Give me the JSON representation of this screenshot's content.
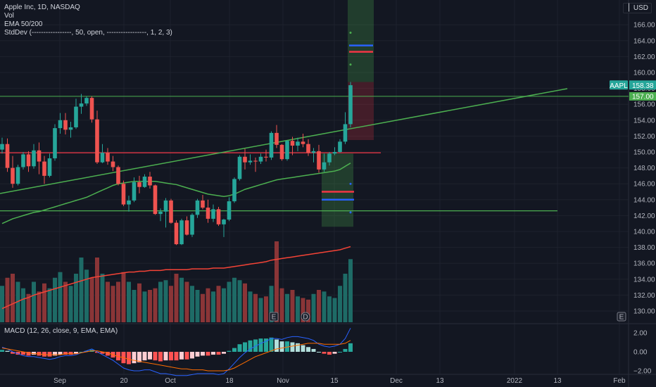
{
  "legend": {
    "symbol": "Apple Inc, 1D, NASDAQ",
    "vol": "Vol",
    "ema": "EMA 50/200",
    "stddev": "StdDev (-----------------, 50, open, -----------------, 1, 2, 3)"
  },
  "macd_legend": "MACD (12, 26, close, 9, EMA, EMA)",
  "currency": "USD",
  "price_tag": {
    "label": "AAPL",
    "value": "158.38"
  },
  "line_tag": {
    "value": "157.00"
  },
  "event_markers": [
    "E",
    "D",
    "E"
  ],
  "colors": {
    "background": "#131722",
    "up": "#26a69a",
    "down": "#ef5350",
    "vol_up": "#1e6b66",
    "vol_down": "#8a3537",
    "ema50": "#4caf50",
    "ema200": "#f44336",
    "hline_green": "#4caf50",
    "hline_red": "#f23645",
    "macd": "#2962ff",
    "signal": "#ff6d00"
  },
  "chart_data": [
    {
      "type": "candlestick",
      "title": "Apple Inc, 1D, NASDAQ",
      "y_ticks": [
        130,
        132,
        134,
        136,
        138,
        140,
        142,
        144,
        146,
        148,
        150,
        152,
        154,
        156,
        158,
        160,
        162,
        164,
        166
      ],
      "x_ticks": [
        "Sep",
        "20",
        "Oct",
        "18",
        "Nov",
        "15",
        "Dec",
        "13",
        "2022",
        "13",
        "Feb"
      ],
      "ohlc": [
        [
          150.3,
          151.8,
          149.8,
          151.0
        ],
        [
          151.0,
          151.7,
          147.5,
          148.0
        ],
        [
          148.0,
          149.5,
          145.5,
          146.0
        ],
        [
          146.0,
          148.4,
          145.8,
          148.1
        ],
        [
          148.1,
          150.0,
          147.8,
          149.7
        ],
        [
          149.7,
          150.1,
          147.5,
          148.2
        ],
        [
          148.2,
          151.0,
          147.9,
          150.2
        ],
        [
          150.2,
          151.2,
          147.2,
          148.8
        ],
        [
          148.8,
          149.5,
          146.0,
          147.0
        ],
        [
          147.0,
          149.8,
          146.8,
          149.2
        ],
        [
          149.2,
          153.5,
          148.9,
          153.0
        ],
        [
          153.0,
          154.9,
          152.3,
          154.0
        ],
        [
          154.0,
          154.9,
          152.2,
          152.8
        ],
        [
          152.8,
          153.8,
          151.8,
          153.1
        ],
        [
          153.1,
          156.7,
          152.9,
          155.7
        ],
        [
          155.7,
          157.3,
          154.8,
          156.1
        ],
        [
          156.1,
          157.0,
          155.8,
          156.8
        ],
        [
          156.8,
          157.0,
          153.7,
          154.1
        ],
        [
          154.1,
          155.2,
          148.5,
          148.7
        ],
        [
          148.7,
          151.0,
          148.6,
          149.9
        ],
        [
          149.9,
          150.5,
          148.4,
          148.8
        ],
        [
          148.8,
          149.5,
          147.6,
          148.1
        ],
        [
          148.1,
          148.3,
          145.8,
          146.0
        ],
        [
          146.0,
          146.4,
          143.2,
          143.4
        ],
        [
          143.4,
          144.5,
          142.5,
          143.9
        ],
        [
          143.9,
          146.8,
          143.7,
          146.2
        ],
        [
          146.2,
          147.0,
          144.8,
          145.6
        ],
        [
          145.6,
          147.2,
          145.5,
          146.9
        ],
        [
          146.9,
          147.5,
          145.4,
          145.8
        ],
        [
          145.8,
          145.9,
          142.1,
          142.2
        ],
        [
          142.2,
          142.9,
          141.3,
          142.5
        ],
        [
          142.5,
          144.2,
          140.5,
          143.9
        ],
        [
          143.9,
          144.1,
          141.0,
          141.1
        ],
        [
          141.1,
          141.4,
          138.3,
          138.4
        ],
        [
          138.4,
          141.6,
          138.3,
          141.4
        ],
        [
          141.4,
          141.9,
          139.5,
          139.6
        ],
        [
          139.6,
          142.3,
          139.3,
          142.1
        ],
        [
          142.1,
          144.1,
          141.7,
          143.9
        ],
        [
          143.9,
          144.6,
          142.8,
          143.0
        ],
        [
          143.0,
          144.0,
          141.1,
          141.6
        ],
        [
          141.6,
          143.4,
          141.2,
          142.8
        ],
        [
          142.8,
          143.1,
          140.7,
          140.9
        ],
        [
          140.9,
          141.6,
          139.3,
          141.5
        ],
        [
          141.5,
          144.3,
          141.3,
          143.8
        ],
        [
          143.8,
          146.8,
          143.6,
          146.6
        ],
        [
          146.6,
          149.6,
          146.4,
          149.4
        ],
        [
          149.4,
          150.4,
          147.8,
          148.7
        ],
        [
          148.7,
          149.7,
          148.4,
          148.9
        ],
        [
          148.9,
          149.3,
          147.5,
          148.8
        ],
        [
          148.8,
          149.8,
          148.5,
          149.4
        ],
        [
          149.4,
          150.3,
          148.8,
          149.3
        ],
        [
          149.3,
          152.6,
          149.0,
          152.4
        ],
        [
          152.4,
          153.4,
          150.5,
          150.9
        ],
        [
          150.9,
          151.0,
          148.9,
          149.1
        ],
        [
          149.1,
          151.5,
          148.9,
          151.4
        ],
        [
          151.4,
          151.9,
          149.6,
          150.8
        ],
        [
          150.8,
          151.8,
          150.1,
          151.3
        ],
        [
          151.3,
          152.3,
          150.6,
          151.0
        ],
        [
          151.0,
          151.6,
          149.5,
          149.9
        ],
        [
          149.9,
          150.5,
          148.7,
          150.1
        ],
        [
          150.1,
          150.9,
          147.4,
          147.8
        ],
        [
          147.8,
          149.8,
          147.5,
          148.7
        ],
        [
          148.7,
          150.0,
          148.3,
          149.8
        ],
        [
          149.8,
          150.6,
          149.6,
          150.0
        ],
        [
          150.0,
          151.6,
          149.9,
          151.3
        ],
        [
          151.3,
          155.0,
          151.0,
          153.5
        ],
        [
          153.5,
          158.8,
          153.1,
          158.4
        ]
      ],
      "ema50": [
        141.0,
        141.3,
        141.6,
        141.8,
        142.0,
        142.2,
        142.4,
        142.5,
        142.7,
        142.9,
        143.1,
        143.3,
        143.5,
        143.7,
        143.9,
        144.1,
        144.3,
        144.6,
        144.9,
        145.2,
        145.5,
        145.8,
        146.0,
        146.1,
        146.2,
        146.3,
        146.3,
        146.3,
        146.3,
        146.3,
        146.2,
        146.1,
        146.0,
        145.9,
        145.7,
        145.5,
        145.3,
        145.1,
        144.9,
        144.7,
        144.6,
        144.5,
        144.4,
        144.5,
        144.7,
        145.0,
        145.3,
        145.5,
        145.7,
        145.9,
        146.1,
        146.3,
        146.5,
        146.6,
        146.7,
        146.8,
        146.9,
        147.0,
        147.1,
        147.2,
        147.3,
        147.4,
        147.5,
        147.6,
        147.8,
        148.2,
        148.6
      ],
      "ema200": [
        130.3,
        130.6,
        130.9,
        131.2,
        131.5,
        131.7,
        132.0,
        132.2,
        132.4,
        132.6,
        132.8,
        133.0,
        133.2,
        133.4,
        133.6,
        133.8,
        134.0,
        134.2,
        134.3,
        134.4,
        134.5,
        134.6,
        134.7,
        134.8,
        134.9,
        134.9,
        135.0,
        135.0,
        135.1,
        135.1,
        135.1,
        135.2,
        135.2,
        135.2,
        135.2,
        135.2,
        135.3,
        135.3,
        135.3,
        135.3,
        135.4,
        135.4,
        135.4,
        135.5,
        135.6,
        135.7,
        135.8,
        135.9,
        136.0,
        136.1,
        136.2,
        136.4,
        136.5,
        136.6,
        136.7,
        136.8,
        136.9,
        137.0,
        137.1,
        137.2,
        137.3,
        137.4,
        137.5,
        137.6,
        137.7,
        137.9,
        138.1
      ],
      "volume_norm": [
        0.45,
        0.55,
        0.6,
        0.5,
        0.42,
        0.35,
        0.5,
        0.38,
        0.48,
        0.42,
        0.55,
        0.62,
        0.5,
        0.45,
        0.6,
        0.8,
        0.65,
        0.55,
        0.8,
        0.6,
        0.5,
        0.45,
        0.5,
        0.62,
        0.5,
        0.4,
        0.48,
        0.38,
        0.4,
        0.42,
        0.5,
        0.52,
        0.45,
        0.6,
        0.55,
        0.5,
        0.45,
        0.4,
        0.35,
        0.42,
        0.38,
        0.45,
        0.42,
        0.5,
        0.55,
        0.52,
        0.48,
        0.38,
        0.35,
        0.3,
        0.32,
        0.45,
        1.0,
        0.42,
        0.35,
        0.4,
        0.32,
        0.3,
        0.28,
        0.35,
        0.4,
        0.38,
        0.32,
        0.3,
        0.45,
        0.6,
        0.78
      ],
      "hlines": [
        157.0,
        149.9,
        142.6
      ],
      "trendline": {
        "from": [
          0,
          146.2
        ],
        "to": [
          100,
          157.5
        ]
      }
    },
    {
      "type": "line",
      "title": "MACD (12, 26, close, 9, EMA, EMA)",
      "y_ticks": [
        2.0,
        0.0,
        -2.0
      ],
      "histogram": [
        0.2,
        0.1,
        -0.2,
        -0.3,
        -0.3,
        -0.4,
        -0.3,
        -0.4,
        -0.5,
        -0.5,
        -0.4,
        -0.3,
        -0.3,
        -0.3,
        -0.2,
        0.0,
        0.1,
        0.2,
        -0.1,
        -0.2,
        -0.4,
        -0.6,
        -0.9,
        -1.2,
        -1.3,
        -1.2,
        -1.1,
        -0.9,
        -0.8,
        -0.9,
        -1.0,
        -0.9,
        -0.9,
        -0.9,
        -0.8,
        -0.8,
        -0.7,
        -0.5,
        -0.4,
        -0.4,
        -0.3,
        -0.3,
        -0.2,
        0.1,
        0.4,
        0.8,
        1.0,
        1.2,
        1.3,
        1.4,
        1.4,
        1.5,
        1.3,
        1.1,
        1.1,
        1.0,
        0.9,
        0.7,
        0.5,
        0.3,
        0.0,
        -0.2,
        -0.3,
        -0.2,
        0.0,
        0.3,
        0.9
      ],
      "macd": [
        0.5,
        0.3,
        0.0,
        -0.2,
        -0.4,
        -0.5,
        -0.5,
        -0.6,
        -0.7,
        -0.8,
        -0.7,
        -0.5,
        -0.4,
        -0.4,
        -0.3,
        -0.1,
        0.1,
        0.3,
        0.0,
        -0.3,
        -0.6,
        -0.9,
        -1.3,
        -1.7,
        -1.9,
        -2.0,
        -2.0,
        -1.9,
        -1.9,
        -2.1,
        -2.3,
        -2.3,
        -2.4,
        -2.5,
        -2.5,
        -2.5,
        -2.4,
        -2.3,
        -2.3,
        -2.3,
        -2.3,
        -2.4,
        -2.3,
        -1.8,
        -1.2,
        -0.6,
        -0.1,
        0.3,
        0.6,
        0.9,
        1.1,
        1.4,
        1.4,
        1.3,
        1.5,
        1.6,
        1.6,
        1.5,
        1.4,
        1.2,
        0.8,
        0.6,
        0.5,
        0.6,
        0.8,
        1.4,
        2.5
      ],
      "signal": [
        0.4,
        0.3,
        0.2,
        0.1,
        0.0,
        -0.1,
        -0.2,
        -0.2,
        -0.3,
        -0.3,
        -0.3,
        -0.3,
        -0.2,
        -0.2,
        -0.2,
        -0.1,
        0.0,
        0.1,
        0.1,
        0.0,
        -0.1,
        -0.3,
        -0.5,
        -0.6,
        -0.8,
        -0.9,
        -1.0,
        -1.1,
        -1.2,
        -1.3,
        -1.4,
        -1.5,
        -1.6,
        -1.7,
        -1.8,
        -1.8,
        -1.9,
        -1.9,
        -1.9,
        -2.0,
        -2.0,
        -2.0,
        -2.0,
        -1.9,
        -1.7,
        -1.4,
        -1.1,
        -0.8,
        -0.5,
        -0.3,
        -0.1,
        0.1,
        0.3,
        0.4,
        0.5,
        0.6,
        0.7,
        0.8,
        0.9,
        0.9,
        0.9,
        0.8,
        0.8,
        0.8,
        0.8,
        0.9,
        1.2
      ]
    }
  ]
}
